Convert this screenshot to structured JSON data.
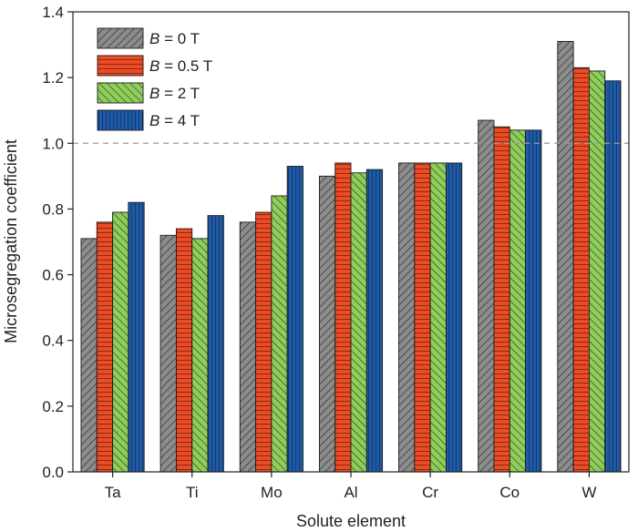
{
  "chart_data": {
    "type": "bar",
    "title": "",
    "xlabel": "Solute element",
    "ylabel": "Microsegregation coefficient",
    "categories": [
      "Ta",
      "Ti",
      "Mo",
      "Al",
      "Cr",
      "Co",
      "W"
    ],
    "ylim": [
      0,
      1.4
    ],
    "yticks": [
      "0.0",
      "0.2",
      "0.4",
      "0.6",
      "0.8",
      "1.0",
      "1.2",
      "1.4"
    ],
    "reference_line": 1.0,
    "grid": false,
    "legend_position": "top-left",
    "series": [
      {
        "name_var": "B",
        "name_rest": " = 0 T",
        "color": "#8c8c8c",
        "pattern": "diagonal-hatch",
        "values": [
          0.71,
          0.72,
          0.76,
          0.9,
          0.94,
          1.07,
          1.31
        ]
      },
      {
        "name_var": "B",
        "name_rest": " = 0.5 T",
        "color": "#ee4a23",
        "pattern": "horizontal-lines",
        "values": [
          0.76,
          0.74,
          0.79,
          0.94,
          0.94,
          1.05,
          1.23
        ]
      },
      {
        "name_var": "B",
        "name_rest": " = 2 T",
        "color": "#8fce5a",
        "pattern": "reverse-diagonal-hatch",
        "values": [
          0.79,
          0.71,
          0.84,
          0.91,
          0.94,
          1.04,
          1.22
        ]
      },
      {
        "name_var": "B",
        "name_rest": " = 4 T",
        "color": "#1f5aa6",
        "pattern": "vertical-lines",
        "values": [
          0.82,
          0.78,
          0.93,
          0.92,
          0.94,
          1.04,
          1.19
        ]
      }
    ]
  }
}
